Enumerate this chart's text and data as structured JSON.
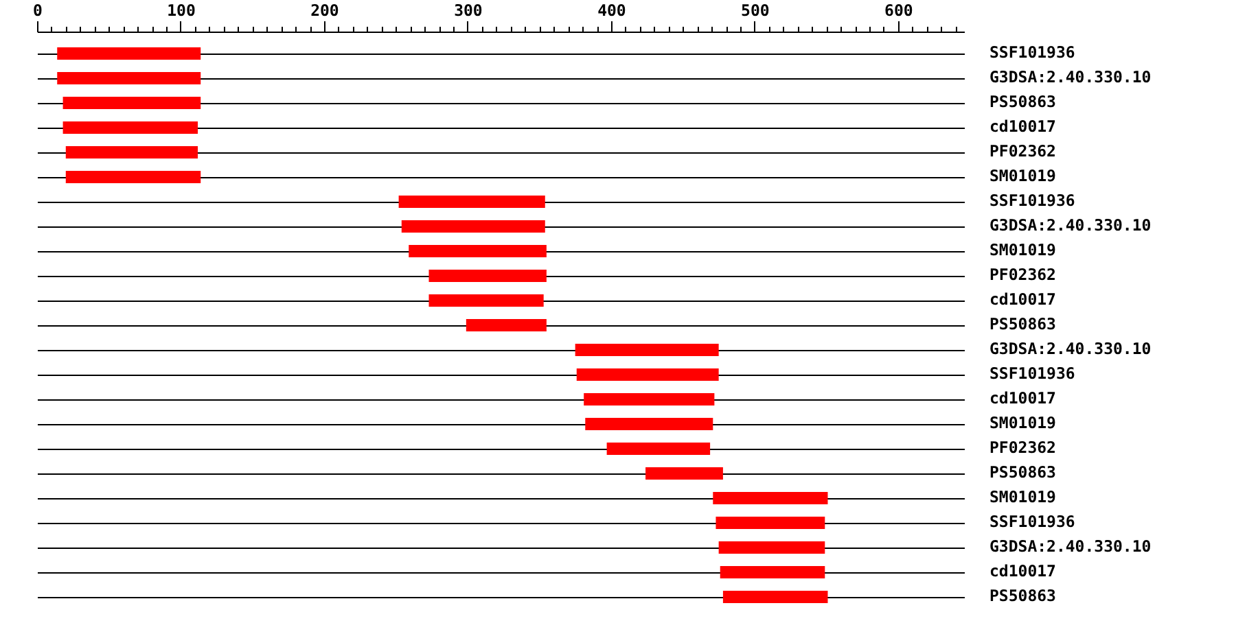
{
  "chart_data": {
    "type": "bar",
    "orientation": "horizontal",
    "categories": [
      "SSF101936",
      "G3DSA:2.40.330.10",
      "PS50863",
      "cd10017",
      "PF02362",
      "SM01019",
      "SSF101936",
      "G3DSA:2.40.330.10",
      "SM01019",
      "PF02362",
      "cd10017",
      "PS50863",
      "G3DSA:2.40.330.10",
      "SSF101936",
      "cd10017",
      "SM01019",
      "PF02362",
      "PS50863",
      "SM01019",
      "SSF101936",
      "G3DSA:2.40.330.10",
      "cd10017",
      "PS50863"
    ],
    "base": [
      14,
      14,
      18,
      18,
      20,
      20,
      252,
      254,
      259,
      273,
      273,
      299,
      375,
      376,
      381,
      382,
      397,
      424,
      471,
      473,
      475,
      476,
      478
    ],
    "values": [
      100,
      100,
      96,
      94,
      92,
      94,
      102,
      100,
      96,
      82,
      80,
      56,
      100,
      99,
      91,
      89,
      72,
      54,
      80,
      76,
      74,
      73,
      73
    ],
    "color": "#ff0000",
    "xlim": [
      0,
      646
    ],
    "xticks": [
      0,
      {
        "value": 10,
        "label": null
      },
      {
        "value": 20,
        "label": null
      },
      {
        "value": 30,
        "label": null
      },
      {
        "value": 40,
        "label": null
      },
      {
        "value": 50,
        "label": null
      },
      {
        "value": 60,
        "label": null
      },
      {
        "value": 70,
        "label": null
      },
      {
        "value": 80,
        "label": null
      },
      {
        "value": 90,
        "label": null
      },
      100,
      {
        "value": 110,
        "label": null
      },
      {
        "value": 120,
        "label": null
      },
      {
        "value": 130,
        "label": null
      },
      {
        "value": 140,
        "label": null
      },
      {
        "value": 150,
        "label": null
      },
      {
        "value": 160,
        "label": null
      },
      {
        "value": 170,
        "label": null
      },
      {
        "value": 180,
        "label": null
      },
      {
        "value": 190,
        "label": null
      },
      200,
      {
        "value": 210,
        "label": null
      },
      {
        "value": 220,
        "label": null
      },
      {
        "value": 230,
        "label": null
      },
      {
        "value": 240,
        "label": null
      },
      {
        "value": 250,
        "label": null
      },
      {
        "value": 260,
        "label": null
      },
      {
        "value": 270,
        "label": null
      },
      {
        "value": 280,
        "label": null
      },
      {
        "value": 290,
        "label": null
      },
      300,
      {
        "value": 310,
        "label": null
      },
      {
        "value": 320,
        "label": null
      },
      {
        "value": 330,
        "label": null
      },
      {
        "value": 340,
        "label": null
      },
      {
        "value": 350,
        "label": null
      },
      {
        "value": 360,
        "label": null
      },
      {
        "value": 370,
        "label": null
      },
      {
        "value": 380,
        "label": null
      },
      {
        "value": 390,
        "label": null
      },
      400,
      {
        "value": 410,
        "label": null
      },
      {
        "value": 420,
        "label": null
      },
      {
        "value": 430,
        "label": null
      },
      {
        "value": 440,
        "label": null
      },
      {
        "value": 450,
        "label": null
      },
      {
        "value": 460,
        "label": null
      },
      {
        "value": 470,
        "label": null
      },
      {
        "value": 480,
        "label": null
      },
      {
        "value": 490,
        "label": null
      },
      500,
      {
        "value": 510,
        "label": null
      },
      {
        "value": 520,
        "label": null
      },
      {
        "value": 530,
        "label": null
      },
      {
        "value": 540,
        "label": null
      },
      {
        "value": 550,
        "label": null
      },
      {
        "value": 560,
        "label": null
      },
      {
        "value": 570,
        "label": null
      },
      {
        "value": 580,
        "label": null
      },
      {
        "value": 590,
        "label": null
      },
      600,
      {
        "value": 610,
        "label": null
      },
      {
        "value": 620,
        "label": null
      },
      {
        "value": 630,
        "label": null
      },
      {
        "value": 640,
        "label": null
      }
    ],
    "grid": "y"
  }
}
